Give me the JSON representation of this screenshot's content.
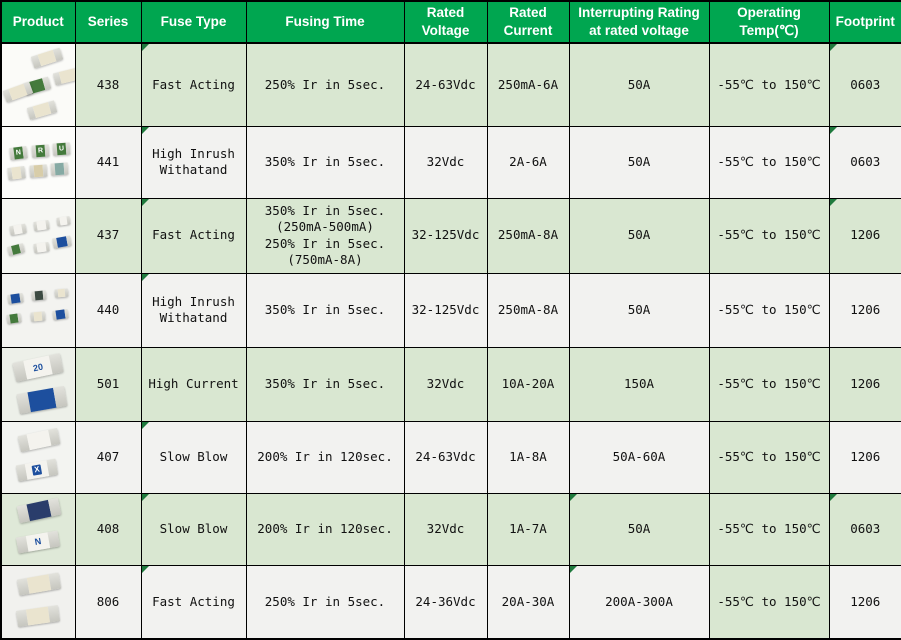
{
  "colors": {
    "header_bg": "#00a650",
    "header_text": "#ffffff",
    "row_green": "#d9e7d1",
    "row_white": "#f2f2f0",
    "border": "#000000",
    "marker": "#1f7a3d"
  },
  "table": {
    "columns": [
      {
        "id": "product",
        "label": "Product"
      },
      {
        "id": "series",
        "label": "Series"
      },
      {
        "id": "fuse_type",
        "label": "Fuse Type"
      },
      {
        "id": "fusing_time",
        "label": "Fusing Time"
      },
      {
        "id": "rated_voltage",
        "label": "Rated\nVoltage"
      },
      {
        "id": "rated_current",
        "label": "Rated\nCurrent"
      },
      {
        "id": "interrupting",
        "label": "Interrupting Rating\nat rated voltage"
      },
      {
        "id": "operating_temp",
        "label": "Operating\nTemp(℃)"
      },
      {
        "id": "footprint",
        "label": "Footprint"
      }
    ],
    "rows": [
      {
        "series": "438",
        "fuse_type": "Fast Acting",
        "fusing_time": "250% Ir in 5sec.",
        "rated_voltage": "24-63Vdc",
        "rated_current": "250mA-6A",
        "interrupting": "50A",
        "operating_temp": "-55℃ to 150℃",
        "footprint": "0603",
        "tone": "green",
        "temp_green": true,
        "markers": [
          "fuse_type",
          "footprint"
        ],
        "photo": {
          "type": "cluster",
          "bg": "#fbfbf8",
          "marks": [],
          "alt": "smd-fuse-cluster-photo"
        }
      },
      {
        "series": "441",
        "fuse_type": "High Inrush\nWithatand",
        "fusing_time": "350% Ir in 5sec.",
        "rated_voltage": "32Vdc",
        "rated_current": "2A-6A",
        "interrupting": "50A",
        "operating_temp": "-55℃ to 150℃",
        "footprint": "0603",
        "tone": "white",
        "temp_green": false,
        "markers": [
          "fuse_type",
          "footprint"
        ],
        "photo": {
          "type": "grid6",
          "bg": "#fcfcfa",
          "marks": [
            "N",
            "R",
            "U"
          ],
          "alt": "smd-fuse-grid-photo"
        }
      },
      {
        "series": "437",
        "fuse_type": "Fast Acting",
        "fusing_time": "350% Ir in 5sec.\n(250mA-500mA)\n250% Ir in 5sec.\n(750mA-8A)",
        "rated_voltage": "32-125Vdc",
        "rated_current": "250mA-8A",
        "interrupting": "50A",
        "operating_temp": "-55℃ to 150℃",
        "footprint": "1206",
        "tone": "green",
        "temp_green": true,
        "markers": [
          "fuse_type",
          "footprint"
        ],
        "photo": {
          "type": "scatter6",
          "bg": "#f6f7f3",
          "marks": [],
          "alt": "smd-fuse-scatter-photo"
        }
      },
      {
        "series": "440",
        "fuse_type": "High Inrush\nWithatand",
        "fusing_time": "350% Ir in 5sec.",
        "rated_voltage": "32-125Vdc",
        "rated_current": "250mA-8A",
        "interrupting": "50A",
        "operating_temp": "-55℃ to 150℃",
        "footprint": "1206",
        "tone": "white",
        "temp_green": false,
        "markers": [
          "fuse_type"
        ],
        "photo": {
          "type": "scatter6s",
          "bg": "#f3f3f0",
          "marks": [],
          "alt": "smd-fuse-scatter-small-photo"
        }
      },
      {
        "series": "501",
        "fuse_type": "High Current",
        "fusing_time": "350% Ir in 5sec.",
        "rated_voltage": "32Vdc",
        "rated_current": "10A-20A",
        "interrupting": "150A",
        "operating_temp": "-55℃ to 150℃",
        "footprint": "1206",
        "tone": "green",
        "temp_green": true,
        "markers": [],
        "photo": {
          "type": "pairlarge",
          "bg": "#edf0e9",
          "marks": [
            "20"
          ],
          "alt": "smd-fuse-pair-large-photo"
        }
      },
      {
        "series": "407",
        "fuse_type": "Slow Blow",
        "fusing_time": "200% Ir in 120sec.",
        "rated_voltage": "24-63Vdc",
        "rated_current": "1A-8A",
        "interrupting": "50A-60A",
        "operating_temp": "-55℃ to 150℃",
        "footprint": "1206",
        "tone": "white",
        "temp_green": true,
        "markers": [
          "fuse_type"
        ],
        "photo": {
          "type": "pair407",
          "bg": "#f3f4f1",
          "marks": [
            "X"
          ],
          "alt": "smd-fuse-pair-photo"
        }
      },
      {
        "series": "408",
        "fuse_type": "Slow Blow",
        "fusing_time": "200% Ir in 120sec.",
        "rated_voltage": "32Vdc",
        "rated_current": "1A-7A",
        "interrupting": "50A",
        "operating_temp": "-55℃ to 150℃",
        "footprint": "0603",
        "tone": "green",
        "temp_green": true,
        "markers": [
          "fuse_type",
          "interrupting",
          "footprint"
        ],
        "photo": {
          "type": "pair408",
          "bg": "#dfe9d8",
          "marks": [
            "N"
          ],
          "alt": "smd-fuse-pair-photo"
        }
      },
      {
        "series": "806",
        "fuse_type": "Fast Acting",
        "fusing_time": "250% Ir in 5sec.",
        "rated_voltage": "24-36Vdc",
        "rated_current": "20A-30A",
        "interrupting": "200A-300A",
        "operating_temp": "-55℃ to 150℃",
        "footprint": "1206",
        "tone": "white",
        "temp_green": true,
        "markers": [
          "fuse_type",
          "interrupting"
        ],
        "photo": {
          "type": "pair806",
          "bg": "#f1f1ee",
          "marks": [],
          "alt": "smd-fuse-pair-plain-photo"
        }
      }
    ]
  }
}
